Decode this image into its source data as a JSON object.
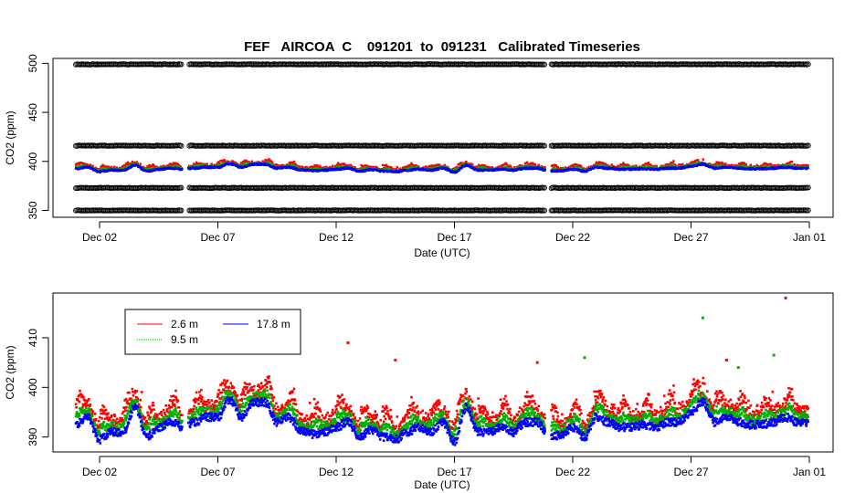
{
  "chart_data": [
    {
      "type": "scatter",
      "title": "FEF   AIRCOA  C    091201  to  091231   Calibrated Timeseries",
      "xlabel": "Date (UTC)",
      "ylabel": "CO2 (ppm)",
      "x_range": [
        "2009-11-30",
        "2010-01-01"
      ],
      "ylim": [
        343,
        505
      ],
      "x_ticks": [
        {
          "label": "Dec 02",
          "date": "2009-12-02"
        },
        {
          "label": "Dec 07",
          "date": "2009-12-07"
        },
        {
          "label": "Dec 12",
          "date": "2009-12-12"
        },
        {
          "label": "Dec 17",
          "date": "2009-12-17"
        },
        {
          "label": "Dec 22",
          "date": "2009-12-22"
        },
        {
          "label": "Dec 27",
          "date": "2009-12-27"
        },
        {
          "label": "Jan 01",
          "date": "2010-01-01"
        }
      ],
      "y_ticks": [
        350,
        400,
        450,
        500
      ],
      "grid": false,
      "reference_gas_levels": [
        350,
        373,
        416,
        499
      ],
      "reference_gas_color": "#000000",
      "data_gaps": [
        {
          "start": "2009-12-05 12:00",
          "end": "2009-12-05 18:00"
        },
        {
          "start": "2009-12-20 20:00",
          "end": "2009-12-21 02:00"
        }
      ],
      "series": [
        {
          "label": "2.6 m",
          "color": "#ff0000",
          "level_offset": 1.4
        },
        {
          "label": "9.5 m",
          "color": "#00b000",
          "level_offset": 0.7
        },
        {
          "label": "17.8 m",
          "color": "#0000ff",
          "level_offset": 0
        }
      ],
      "keypoints": [
        [
          "2009-12-01",
          392.5
        ],
        [
          "2009-12-01 12:00",
          394
        ],
        [
          "2009-12-02",
          389.5
        ],
        [
          "2009-12-02 12:00",
          391
        ],
        [
          "2009-12-03",
          391
        ],
        [
          "2009-12-03 12:00",
          396
        ],
        [
          "2009-12-04",
          390
        ],
        [
          "2009-12-04 12:00",
          392
        ],
        [
          "2009-12-05",
          393
        ],
        [
          "2009-12-05 12:00",
          392
        ],
        [
          "2009-12-06",
          393
        ],
        [
          "2009-12-06 12:00",
          394
        ],
        [
          "2009-12-07",
          394
        ],
        [
          "2009-12-07 12:00",
          397.5
        ],
        [
          "2009-12-08",
          394
        ],
        [
          "2009-12-08 12:00",
          397
        ],
        [
          "2009-12-09",
          397
        ],
        [
          "2009-12-09 12:00",
          393
        ],
        [
          "2009-12-10",
          394
        ],
        [
          "2009-12-10 12:00",
          391.5
        ],
        [
          "2009-12-11",
          390.5
        ],
        [
          "2009-12-11 12:00",
          391
        ],
        [
          "2009-12-12",
          392
        ],
        [
          "2009-12-12 12:00",
          393
        ],
        [
          "2009-12-13",
          390
        ],
        [
          "2009-12-13 12:00",
          391.5
        ],
        [
          "2009-12-14",
          390
        ],
        [
          "2009-12-14 12:00",
          389.5
        ],
        [
          "2009-12-15",
          391
        ],
        [
          "2009-12-15 12:00",
          392
        ],
        [
          "2009-12-16",
          391
        ],
        [
          "2009-12-16 12:00",
          393
        ],
        [
          "2009-12-17",
          389
        ],
        [
          "2009-12-17 12:00",
          396
        ],
        [
          "2009-12-18",
          391
        ],
        [
          "2009-12-18 12:00",
          391
        ],
        [
          "2009-12-19",
          392
        ],
        [
          "2009-12-19 12:00",
          391
        ],
        [
          "2009-12-20",
          393
        ],
        [
          "2009-12-20 12:00",
          393
        ],
        [
          "2009-12-21",
          390
        ],
        [
          "2009-12-21 12:00",
          390.5
        ],
        [
          "2009-12-22",
          392
        ],
        [
          "2009-12-22 12:00",
          390
        ],
        [
          "2009-12-23",
          394
        ],
        [
          "2009-12-23 12:00",
          393
        ],
        [
          "2009-12-24",
          392
        ],
        [
          "2009-12-24 12:00",
          392
        ],
        [
          "2009-12-25",
          392.5
        ],
        [
          "2009-12-25 12:00",
          392
        ],
        [
          "2009-12-26",
          393
        ],
        [
          "2009-12-26 12:00",
          393
        ],
        [
          "2009-12-27",
          395
        ],
        [
          "2009-12-27 12:00",
          397
        ],
        [
          "2009-12-28",
          393
        ],
        [
          "2009-12-28 12:00",
          394
        ],
        [
          "2009-12-29",
          393
        ],
        [
          "2009-12-29 12:00",
          392.5
        ],
        [
          "2009-12-30",
          392.5
        ],
        [
          "2009-12-30 12:00",
          393
        ],
        [
          "2009-12-31",
          394
        ],
        [
          "2009-12-31 12:00",
          393
        ]
      ]
    },
    {
      "type": "scatter",
      "title": "",
      "xlabel": "Date (UTC)",
      "ylabel": "CO2 (ppm)",
      "x_range": [
        "2009-11-30",
        "2010-01-01"
      ],
      "ylim": [
        387,
        419
      ],
      "x_ticks": [
        {
          "label": "Dec 02",
          "date": "2009-12-02"
        },
        {
          "label": "Dec 07",
          "date": "2009-12-07"
        },
        {
          "label": "Dec 12",
          "date": "2009-12-12"
        },
        {
          "label": "Dec 17",
          "date": "2009-12-17"
        },
        {
          "label": "Dec 22",
          "date": "2009-12-22"
        },
        {
          "label": "Dec 27",
          "date": "2009-12-27"
        },
        {
          "label": "Jan 01",
          "date": "2010-01-01"
        }
      ],
      "y_ticks": [
        390,
        400,
        410
      ],
      "grid": false,
      "legend": {
        "placement": "top-left",
        "entries": [
          {
            "label": "2.6 m",
            "color": "#ff0000"
          },
          {
            "label": "9.5 m",
            "color": "#00b000"
          },
          {
            "label": "17.8 m",
            "color": "#0000ff"
          }
        ]
      },
      "outliers": [
        {
          "series": "2.6 m",
          "date": "2009-12-12 12:00",
          "value": 409
        },
        {
          "series": "2.6 m",
          "date": "2009-12-14 12:00",
          "value": 405.5
        },
        {
          "series": "2.6 m",
          "date": "2009-12-20 12:00",
          "value": 405
        },
        {
          "series": "9.5 m",
          "date": "2009-12-22 12:00",
          "value": 406
        },
        {
          "series": "9.5 m",
          "date": "2009-12-27 12:00",
          "value": 414
        },
        {
          "series": "2.6 m",
          "date": "2009-12-28 12:00",
          "value": 405.5
        },
        {
          "series": "9.5 m",
          "date": "2009-12-29",
          "value": 404
        },
        {
          "series": "9.5 m",
          "date": "2009-12-30 12:00",
          "value": 406.5
        },
        {
          "series": "2.6 m",
          "date": "2009-12-31",
          "value": 418
        }
      ]
    }
  ]
}
